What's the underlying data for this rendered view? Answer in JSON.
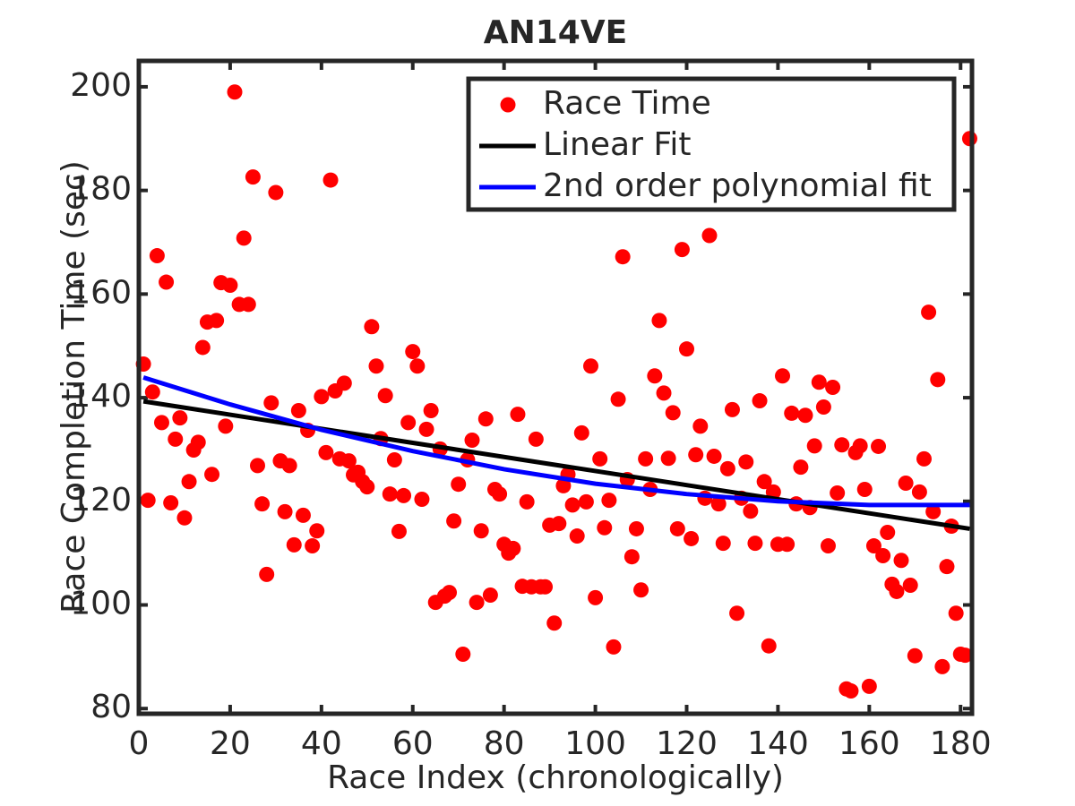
{
  "chart_data": {
    "type": "scatter",
    "title": "AN14VE",
    "xlabel": "Race Index (chronologically)",
    "ylabel": "Race Completion Time (sec)",
    "xlim": [
      0,
      182.5
    ],
    "ylim": [
      79,
      205
    ],
    "xticks": [
      0,
      20,
      40,
      60,
      80,
      100,
      120,
      140,
      160,
      180
    ],
    "yticks": [
      80,
      100,
      120,
      140,
      160,
      180,
      200
    ],
    "grid": false,
    "legend": "upper right",
    "series": [
      {
        "name": "Race Time",
        "type": "scatter",
        "color": "#ff0000",
        "x": [
          1,
          2,
          3,
          4,
          5,
          6,
          7,
          8,
          9,
          10,
          11,
          12,
          13,
          14,
          15,
          16,
          17,
          18,
          19,
          20,
          21,
          22,
          23,
          24,
          25,
          26,
          27,
          28,
          29,
          30,
          31,
          32,
          33,
          34,
          35,
          36,
          37,
          38,
          39,
          40,
          41,
          42,
          43,
          44,
          45,
          46,
          47,
          48,
          49,
          50,
          51,
          52,
          53,
          54,
          55,
          56,
          57,
          58,
          59,
          60,
          61,
          62,
          63,
          64,
          65,
          66,
          67,
          68,
          69,
          70,
          71,
          72,
          73,
          74,
          75,
          76,
          77,
          78,
          79,
          80,
          81,
          82,
          83,
          84,
          85,
          86,
          87,
          88,
          89,
          90,
          91,
          92,
          93,
          94,
          95,
          96,
          97,
          98,
          99,
          100,
          101,
          102,
          103,
          104,
          105,
          106,
          107,
          108,
          109,
          110,
          111,
          112,
          113,
          114,
          115,
          116,
          117,
          118,
          119,
          120,
          121,
          122,
          123,
          124,
          125,
          126,
          127,
          128,
          129,
          130,
          131,
          132,
          133,
          134,
          135,
          136,
          137,
          138,
          139,
          140,
          141,
          142,
          143,
          144,
          145,
          146,
          147,
          148,
          149,
          150,
          151,
          152,
          153,
          154,
          155,
          156,
          157,
          158,
          159,
          160,
          161,
          162,
          163,
          164,
          165,
          166,
          167,
          168,
          169,
          170,
          171,
          172,
          173,
          174,
          175,
          176,
          177,
          178,
          179,
          180,
          181,
          182
        ],
        "values": [
          146.5,
          120.2,
          141.1,
          167.4,
          135.2,
          162.3,
          119.7,
          132.0,
          136.1,
          116.8,
          123.8,
          129.9,
          131.4,
          149.7,
          154.6,
          125.2,
          154.9,
          162.2,
          134.5,
          161.7,
          199.0,
          158.0,
          170.8,
          158.0,
          182.6,
          126.9,
          119.5,
          105.9,
          139.0,
          179.6,
          127.8,
          118.0,
          126.9,
          111.6,
          137.5,
          117.3,
          133.7,
          111.4,
          114.3,
          140.2,
          129.4,
          182.0,
          141.3,
          128.2,
          142.8,
          127.8,
          125.1,
          125.6,
          123.8,
          122.8,
          153.7,
          146.1,
          132.1,
          140.4,
          121.4,
          128.0,
          114.2,
          121.1,
          135.2,
          148.9,
          146.1,
          120.4,
          133.9,
          137.5,
          100.5,
          130.1,
          101.7,
          102.4,
          116.2,
          123.3,
          90.5,
          128.0,
          131.8,
          100.5,
          114.3,
          135.9,
          101.9,
          122.3,
          121.4,
          111.7,
          110.0,
          110.9,
          136.8,
          103.6,
          119.9,
          103.5,
          132.0,
          103.5,
          103.5,
          115.4,
          96.5,
          115.7,
          123.0,
          125.2,
          119.3,
          113.3,
          133.2,
          119.9,
          146.1,
          101.4,
          128.2,
          114.9,
          120.2,
          91.9,
          139.7,
          167.2,
          124.2,
          109.3,
          114.7,
          102.9,
          128.2,
          122.3,
          144.2,
          154.9,
          140.9,
          128.3,
          137.1,
          114.7,
          168.6,
          149.4,
          112.8,
          129.0,
          134.5,
          120.6,
          171.3,
          128.7,
          119.5,
          111.9,
          126.3,
          137.7,
          98.4,
          120.6,
          127.6,
          118.1,
          111.9,
          139.4,
          123.8,
          92.1,
          121.8,
          111.7,
          144.2,
          111.7,
          137.0,
          119.5,
          126.6,
          136.6,
          118.8,
          130.7,
          143.0,
          138.2,
          111.4,
          142.0,
          121.6,
          130.9,
          83.8,
          83.4,
          129.4,
          130.7,
          122.3,
          84.3,
          111.4,
          130.6,
          109.5,
          114.0,
          104.0,
          102.6,
          108.6,
          123.5,
          103.8,
          90.2,
          121.8,
          128.2,
          156.5,
          118.0,
          143.5,
          88.1,
          107.4,
          115.2,
          98.4,
          90.5,
          90.3,
          190.0
        ]
      },
      {
        "name": "Linear Fit",
        "type": "line",
        "color": "#000000",
        "x": [
          1,
          182
        ],
        "values": [
          139.3,
          114.7
        ]
      },
      {
        "name": "2nd order polynomial fit",
        "type": "line",
        "color": "#0000ff",
        "x": [
          1,
          20,
          40,
          60,
          80,
          100,
          120,
          140,
          160,
          182
        ],
        "values": [
          143.9,
          138.7,
          133.8,
          129.7,
          126.2,
          123.4,
          121.4,
          120.0,
          119.3,
          119.3
        ]
      }
    ]
  }
}
